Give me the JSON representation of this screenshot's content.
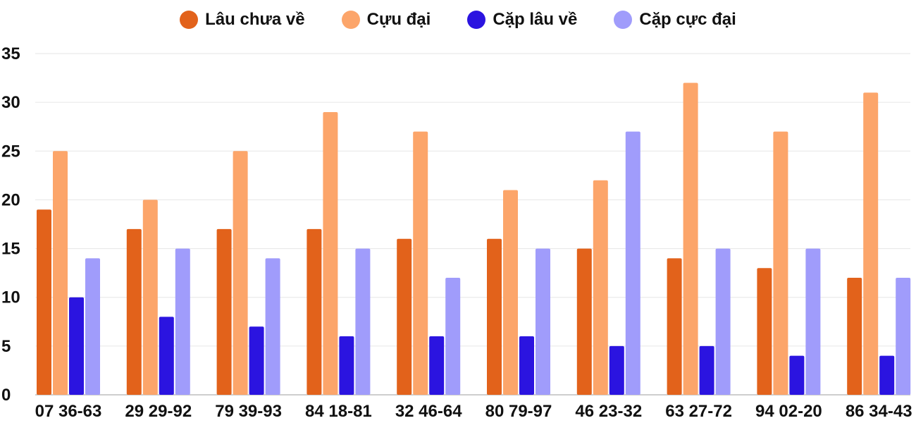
{
  "chart_data": {
    "type": "bar",
    "title": "",
    "xlabel": "",
    "ylabel": "",
    "ylim": [
      0,
      35
    ],
    "yticks": [
      0,
      5,
      10,
      15,
      20,
      25,
      30,
      35
    ],
    "grid": true,
    "legend_position": "top-center",
    "categories": [
      "07 36-63",
      "29 29-92",
      "79 39-93",
      "84 18-81",
      "32 46-64",
      "80 79-97",
      "46 23-32",
      "63 27-72",
      "94 02-20",
      "86 34-43"
    ],
    "series": [
      {
        "name": "Lâu chưa về",
        "color": "#e2621b",
        "values": [
          19,
          17,
          17,
          17,
          16,
          16,
          15,
          14,
          13,
          12
        ]
      },
      {
        "name": "Cựu đại",
        "color": "#fca56a",
        "values": [
          25,
          20,
          25,
          29,
          27,
          21,
          22,
          32,
          27,
          31
        ]
      },
      {
        "name": "Cặp lâu về",
        "color": "#2b14e0",
        "values": [
          10,
          8,
          7,
          6,
          6,
          6,
          5,
          5,
          4,
          4
        ]
      },
      {
        "name": "Cặp cực đại",
        "color": "#a09cfb",
        "values": [
          14,
          15,
          14,
          15,
          12,
          15,
          27,
          15,
          15,
          12
        ]
      }
    ]
  }
}
